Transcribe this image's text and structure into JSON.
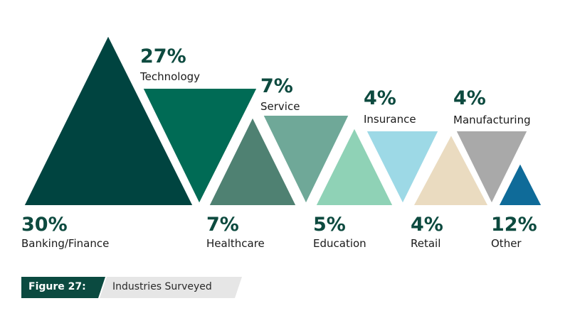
{
  "chart_data": {
    "type": "pictograph-triangles",
    "categories": [
      "Banking/Finance",
      "Technology",
      "Healthcare",
      "Service",
      "Education",
      "Insurance",
      "Retail",
      "Manufacturing",
      "Other"
    ],
    "values": [
      30,
      27,
      7,
      7,
      5,
      4,
      4,
      4,
      12
    ],
    "labels": [
      "30%",
      "27%",
      "7%",
      "7%",
      "5%",
      "4%",
      "4%",
      "4%",
      "12%"
    ],
    "orientation": [
      "up",
      "down",
      "up",
      "down",
      "up",
      "down",
      "up",
      "down",
      "up"
    ],
    "colors": [
      "#004440",
      "#006b55",
      "#4f8172",
      "#6fa898",
      "#8fd2b6",
      "#9dd9e6",
      "#eadbc0",
      "#a9a9a9",
      "#0f6b99"
    ]
  },
  "caption": {
    "label": "Figure 27:",
    "title": "Industries Surveyed"
  }
}
